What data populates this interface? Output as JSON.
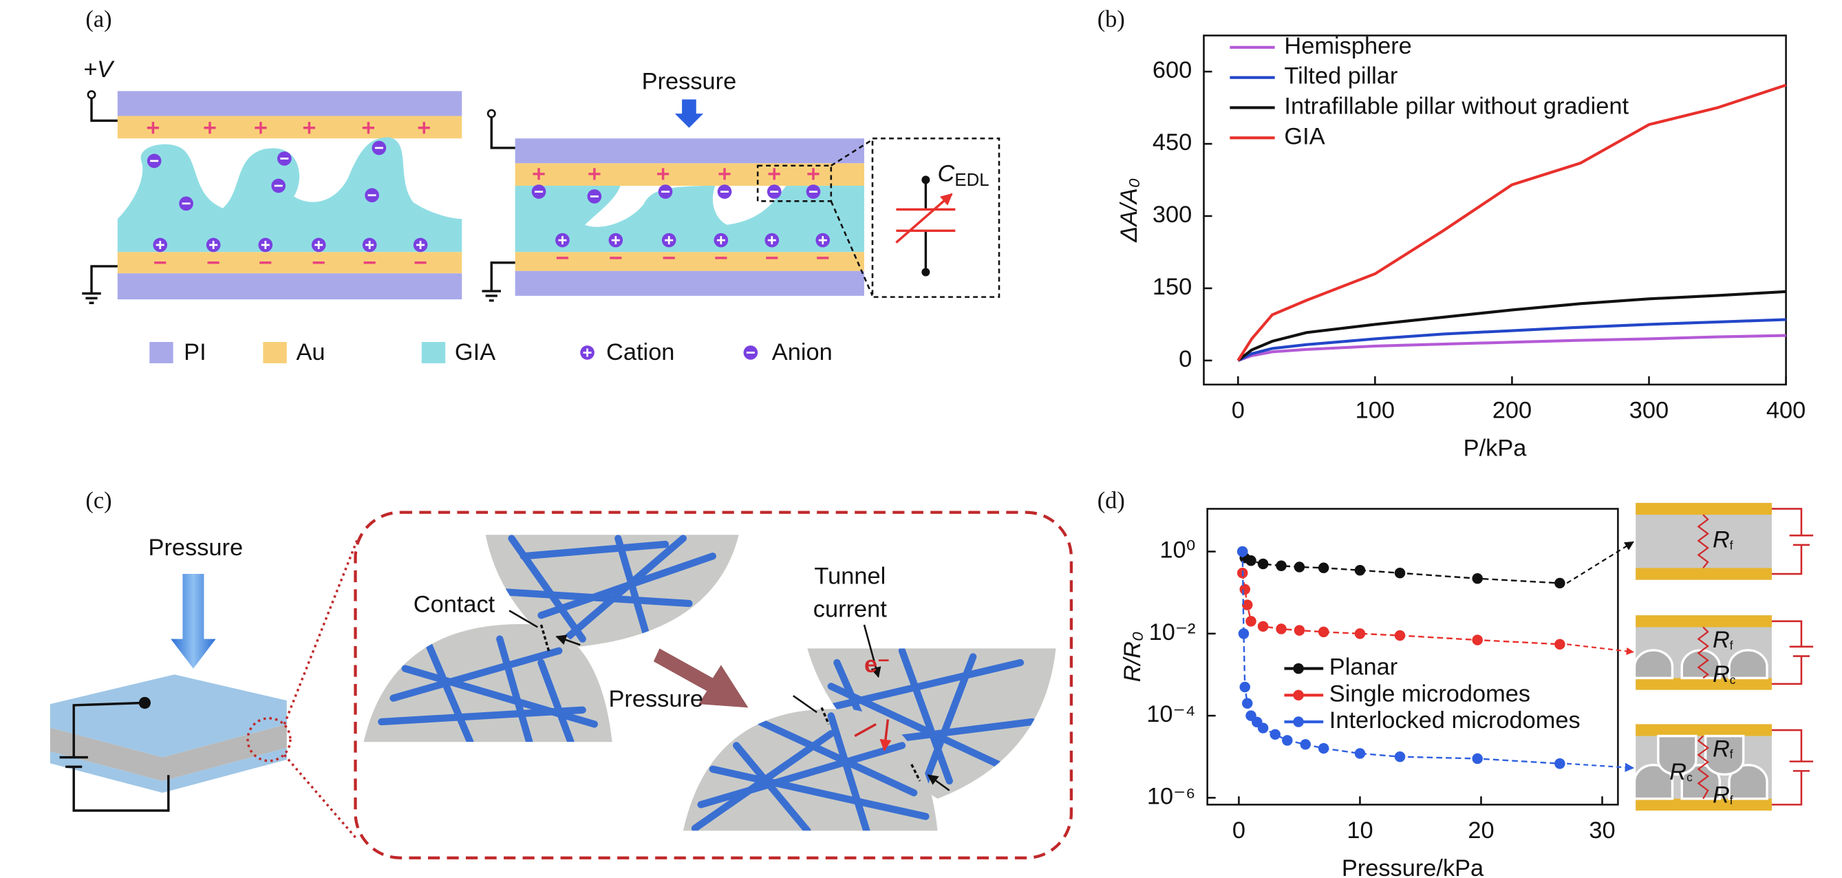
{
  "panel_labels": [
    "(a)",
    "(b)",
    "(c)",
    "(d)"
  ],
  "panel_a": {
    "voltage": "+V",
    "pressure": "Pressure",
    "capacitor": {
      "main": "C",
      "sub": "EDL"
    },
    "legend": [
      "PI",
      "Au",
      "GIA",
      "Cation",
      "Anion"
    ]
  },
  "panel_c": {
    "pressure_left": "Pressure",
    "contact": "Contact",
    "tunnel": [
      "Tunnel",
      "current"
    ],
    "pressure_mid": "Pressure",
    "electron": "e⁻"
  },
  "panel_d_insets": [
    [
      {
        "main": "R",
        "sub": "f"
      }
    ],
    [
      {
        "main": "R",
        "sub": "f"
      },
      {
        "main": "R",
        "sub": "c"
      }
    ],
    [
      {
        "main": "R",
        "sub": "f"
      },
      {
        "main": "R",
        "sub": "c"
      },
      {
        "main": "R",
        "sub": "f"
      }
    ]
  ],
  "chart_data": [
    {
      "type": "line",
      "x_label": "P/kPa",
      "y_label": "ΔA/A₀",
      "x": [
        0,
        10,
        25,
        50,
        100,
        150,
        200,
        250,
        300,
        350,
        400
      ],
      "series": [
        {
          "name": "Hemisphere",
          "color": "#b45ad6",
          "values": [
            0,
            10,
            18,
            23,
            30,
            34,
            38,
            42,
            45,
            49,
            52
          ]
        },
        {
          "name": "Tilted pillar",
          "color": "#2346c8",
          "values": [
            0,
            14,
            25,
            33,
            45,
            55,
            62,
            69,
            75,
            80,
            85
          ]
        },
        {
          "name": "Intrafillable pillar without gradient",
          "color": "#111111",
          "values": [
            0,
            22,
            40,
            58,
            75,
            90,
            105,
            118,
            128,
            135,
            143
          ]
        },
        {
          "name": "GIA",
          "color": "#e8302c",
          "values": [
            0,
            45,
            95,
            125,
            180,
            270,
            365,
            410,
            490,
            525,
            572
          ]
        }
      ],
      "xlim": [
        -25,
        400
      ],
      "ylim": [
        -50,
        675
      ],
      "xticks": [
        0,
        100,
        200,
        300,
        400
      ],
      "yticks": [
        0,
        150,
        300,
        450,
        600
      ],
      "legend": "upper left"
    },
    {
      "type": "line",
      "x_label": "Pressure/kPa",
      "y_label": "R/R₀",
      "yscale": "log",
      "markers": true,
      "dashed": true,
      "series": [
        {
          "name": "Planar",
          "color": "#111111",
          "x": [
            0.3,
            0.5,
            1,
            2,
            3.5,
            5,
            7,
            10,
            13.3,
            19.7,
            26.5
          ],
          "values": [
            1,
            0.7,
            0.6,
            0.5,
            0.45,
            0.42,
            0.4,
            0.35,
            0.3,
            0.22,
            0.17
          ]
        },
        {
          "name": "Single microdomes",
          "color": "#e8302c",
          "x": [
            0.3,
            0.5,
            0.7,
            1,
            2,
            3.5,
            5,
            7,
            10,
            13.3,
            19.7,
            26.5
          ],
          "values": [
            0.3,
            0.12,
            0.05,
            0.02,
            0.015,
            0.013,
            0.012,
            0.011,
            0.01,
            0.009,
            0.007,
            0.0055
          ]
        },
        {
          "name": "Interlocked microdomes",
          "color": "#2f5fe0",
          "x": [
            0.3,
            0.4,
            0.5,
            0.7,
            1,
            1.5,
            2,
            3,
            4,
            5.5,
            7,
            10,
            13.3,
            19.7,
            26.5
          ],
          "values": [
            1,
            0.01,
            0.0005,
            0.0002,
            0.0001,
            7e-05,
            5e-05,
            3.5e-05,
            2.5e-05,
            2e-05,
            1.6e-05,
            1.2e-05,
            1e-05,
            9e-06,
            6.8e-06
          ]
        }
      ],
      "xlim": [
        -2.6,
        31.3
      ],
      "ylim": [
        6.8e-07,
        11
      ],
      "xticks": [
        0,
        10,
        20,
        30
      ],
      "yticks": [
        {
          "value": 1,
          "label": "10⁰"
        },
        {
          "value": 0.01,
          "label": "10⁻²"
        },
        {
          "value": 0.0001,
          "label": "10⁻⁴"
        },
        {
          "value": 1e-06,
          "label": "10⁻⁶"
        }
      ],
      "legend": "center left"
    }
  ]
}
